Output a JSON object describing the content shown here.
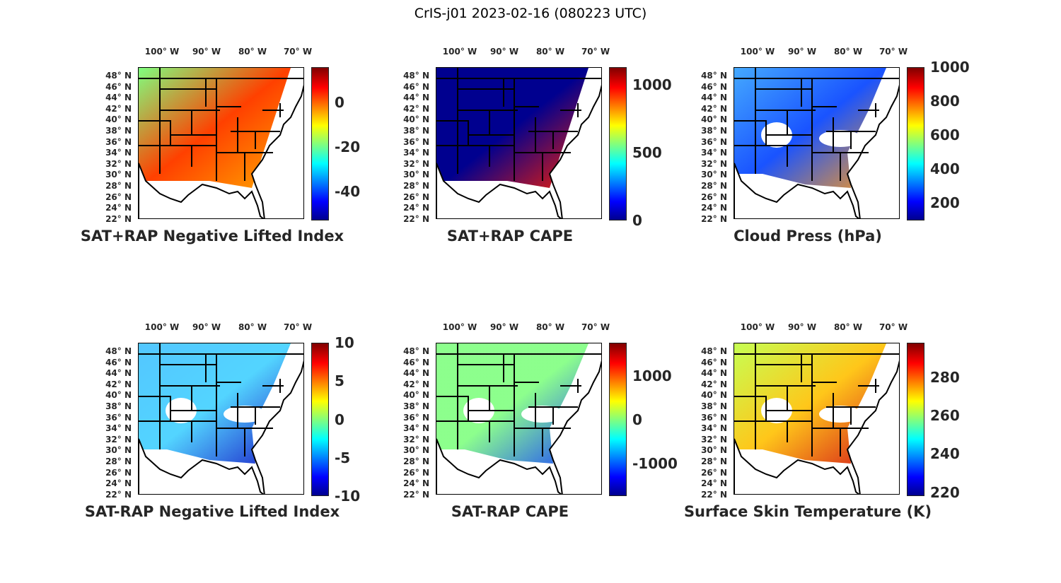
{
  "title": "CrIS-j01 2023-02-16 (080223 UTC)",
  "lon_labels": [
    "100° W",
    "90° W",
    "80° W",
    "70° W"
  ],
  "lat_labels": [
    "48° N",
    "46° N",
    "44° N",
    "42° N",
    "40° N",
    "38° N",
    "36° N",
    "34° N",
    "32° N",
    "30° N",
    "28° N",
    "26° N",
    "24° N",
    "22° N"
  ],
  "panels": [
    {
      "title": "SAT+RAP Negative Lifted Index",
      "clim": [
        -53,
        16
      ],
      "ticks": [
        {
          "v": 0,
          "label": "0"
        },
        {
          "v": -20,
          "label": "-20"
        },
        {
          "v": -40,
          "label": "-40"
        }
      ],
      "fill": [
        "#7fff7f",
        "#ff4000",
        "#ffaa00"
      ],
      "swath": "full"
    },
    {
      "title": "SAT+RAP CAPE",
      "clim": [
        0,
        1130
      ],
      "ticks": [
        {
          "v": 1000,
          "label": "1000"
        },
        {
          "v": 500,
          "label": "500"
        },
        {
          "v": 0,
          "label": "0"
        }
      ],
      "fill": [
        "#00008f",
        "#00008f",
        "#ff2000"
      ],
      "swath": "full"
    },
    {
      "title": "Cloud Press (hPa)",
      "clim": [
        97,
        1000
      ],
      "ticks": [
        {
          "v": 1000,
          "label": "1000"
        },
        {
          "v": 800,
          "label": "800"
        },
        {
          "v": 600,
          "label": "600"
        },
        {
          "v": 400,
          "label": "400"
        },
        {
          "v": 200,
          "label": "200"
        }
      ],
      "fill": [
        "#30a0ff",
        "#0040ff",
        "#ff9000"
      ],
      "swath": "patchy"
    },
    {
      "title": "SAT-RAP Negative Lifted Index",
      "clim": [
        -10,
        10
      ],
      "ticks": [
        {
          "v": 10,
          "label": "10"
        },
        {
          "v": 5,
          "label": "5"
        },
        {
          "v": 0,
          "label": "0"
        },
        {
          "v": -5,
          "label": "-5"
        },
        {
          "v": -10,
          "label": "-10"
        }
      ],
      "fill": [
        "#40c0ff",
        "#40d0ff",
        "#0000c0"
      ],
      "swath": "patchy"
    },
    {
      "title": "SAT-RAP CAPE",
      "clim": [
        -1750,
        1770
      ],
      "ticks": [
        {
          "v": 1000,
          "label": "1000"
        },
        {
          "v": 0,
          "label": "0"
        },
        {
          "v": -1000,
          "label": "-1000"
        }
      ],
      "fill": [
        "#80ff80",
        "#80ff80",
        "#0030ff"
      ],
      "swath": "patchy"
    },
    {
      "title": "Surface Skin Temperature (K)",
      "clim": [
        218,
        298
      ],
      "ticks": [
        {
          "v": 280,
          "label": "280"
        },
        {
          "v": 260,
          "label": "260"
        },
        {
          "v": 240,
          "label": "240"
        },
        {
          "v": 220,
          "label": "220"
        }
      ],
      "fill": [
        "#c0ff40",
        "#ffc000",
        "#d00000"
      ],
      "swath": "patchy"
    }
  ]
}
